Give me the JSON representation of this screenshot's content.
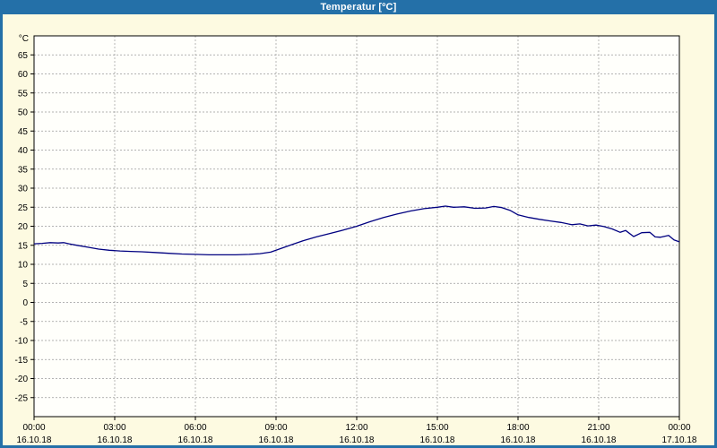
{
  "window": {
    "title": "Temperatur [ºC]"
  },
  "colors": {
    "frame": "#2470a8",
    "titlebar": "#2470a8",
    "background": "#fdfae1",
    "plot_bg": "#fffffb",
    "grid": "#9a9a9a",
    "axis": "#000000",
    "line": "#000080"
  },
  "chart_data": {
    "type": "line",
    "title": "Temperatur [ºC]",
    "xlabel": "",
    "ylabel": "°C",
    "ylim": [
      -30,
      70
    ],
    "xlim_hours": [
      0,
      24
    ],
    "grid": true,
    "legend": "none",
    "yticks": [
      65,
      60,
      55,
      50,
      45,
      40,
      35,
      30,
      25,
      20,
      15,
      10,
      5,
      0,
      -5,
      -10,
      -15,
      -20,
      -25
    ],
    "xticks": [
      {
        "hour": 0,
        "time": "00:00",
        "date": "16.10.18"
      },
      {
        "hour": 3,
        "time": "03:00",
        "date": "16.10.18"
      },
      {
        "hour": 6,
        "time": "06:00",
        "date": "16.10.18"
      },
      {
        "hour": 9,
        "time": "09:00",
        "date": "16.10.18"
      },
      {
        "hour": 12,
        "time": "12:00",
        "date": "16.10.18"
      },
      {
        "hour": 15,
        "time": "15:00",
        "date": "16.10.18"
      },
      {
        "hour": 18,
        "time": "18:00",
        "date": "16.10.18"
      },
      {
        "hour": 21,
        "time": "21:00",
        "date": "16.10.18"
      },
      {
        "hour": 24,
        "time": "00:00",
        "date": "17.10.18"
      }
    ],
    "series": [
      {
        "name": "Temperatur",
        "color": "#000080",
        "points": [
          [
            0,
            15.4
          ],
          [
            0.3,
            15.5
          ],
          [
            0.6,
            15.7
          ],
          [
            0.9,
            15.6
          ],
          [
            1.1,
            15.7
          ],
          [
            1.3,
            15.4
          ],
          [
            1.6,
            15.0
          ],
          [
            2,
            14.5
          ],
          [
            2.4,
            14.0
          ],
          [
            2.8,
            13.7
          ],
          [
            3.2,
            13.5
          ],
          [
            3.6,
            13.4
          ],
          [
            4,
            13.3
          ],
          [
            4.5,
            13.1
          ],
          [
            5,
            12.9
          ],
          [
            5.5,
            12.7
          ],
          [
            6,
            12.6
          ],
          [
            6.5,
            12.5
          ],
          [
            7,
            12.5
          ],
          [
            7.5,
            12.5
          ],
          [
            8,
            12.6
          ],
          [
            8.4,
            12.8
          ],
          [
            8.8,
            13.2
          ],
          [
            9.2,
            14.2
          ],
          [
            9.6,
            15.2
          ],
          [
            10,
            16.2
          ],
          [
            10.5,
            17.2
          ],
          [
            11,
            18.1
          ],
          [
            11.5,
            19.0
          ],
          [
            12,
            20.0
          ],
          [
            12.5,
            21.2
          ],
          [
            13,
            22.3
          ],
          [
            13.5,
            23.2
          ],
          [
            14,
            24.0
          ],
          [
            14.5,
            24.6
          ],
          [
            15,
            25.0
          ],
          [
            15.3,
            25.3
          ],
          [
            15.6,
            25.0
          ],
          [
            16,
            25.1
          ],
          [
            16.4,
            24.7
          ],
          [
            16.8,
            24.8
          ],
          [
            17.1,
            25.2
          ],
          [
            17.4,
            24.9
          ],
          [
            17.7,
            24.2
          ],
          [
            18,
            23.0
          ],
          [
            18.4,
            22.3
          ],
          [
            18.8,
            21.8
          ],
          [
            19.2,
            21.4
          ],
          [
            19.6,
            21.0
          ],
          [
            20,
            20.4
          ],
          [
            20.3,
            20.6
          ],
          [
            20.6,
            20.1
          ],
          [
            20.9,
            20.3
          ],
          [
            21.2,
            19.9
          ],
          [
            21.5,
            19.3
          ],
          [
            21.8,
            18.4
          ],
          [
            22,
            18.9
          ],
          [
            22.3,
            17.3
          ],
          [
            22.6,
            18.3
          ],
          [
            22.9,
            18.4
          ],
          [
            23.1,
            17.2
          ],
          [
            23.3,
            17.1
          ],
          [
            23.6,
            17.6
          ],
          [
            23.8,
            16.4
          ],
          [
            24,
            15.9
          ]
        ]
      }
    ]
  }
}
